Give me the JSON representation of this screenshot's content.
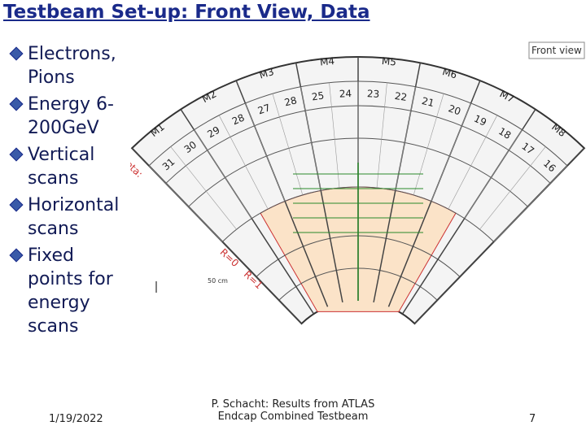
{
  "header": {
    "title": "Testbeam Set-up: Front View, Data"
  },
  "bullets": [
    "Electrons, Pions",
    "Energy 6-200GeV",
    "Vertical scans",
    "Horizontal scans",
    "Fixed points for energy scans"
  ],
  "diagram": {
    "label": "Front view",
    "modules": [
      "M1",
      "M2",
      "M3",
      "M4",
      "M5",
      "M6",
      "M7",
      "M8"
    ],
    "cells": [
      "31",
      "30",
      "29",
      "28",
      "27",
      "28",
      "25",
      "24",
      "23",
      "22",
      "21",
      "20",
      "19",
      "18",
      "17",
      "16"
    ],
    "eta_label": "eta:",
    "r0_label": "R=0",
    "r1_label": "R=1",
    "scale_label": "50 cm"
  },
  "footer": {
    "date": "1/19/2022",
    "lines": [
      "P. Schacht: Results from ATLAS",
      "Endcap Combined Testbeam"
    ],
    "page": "7"
  }
}
